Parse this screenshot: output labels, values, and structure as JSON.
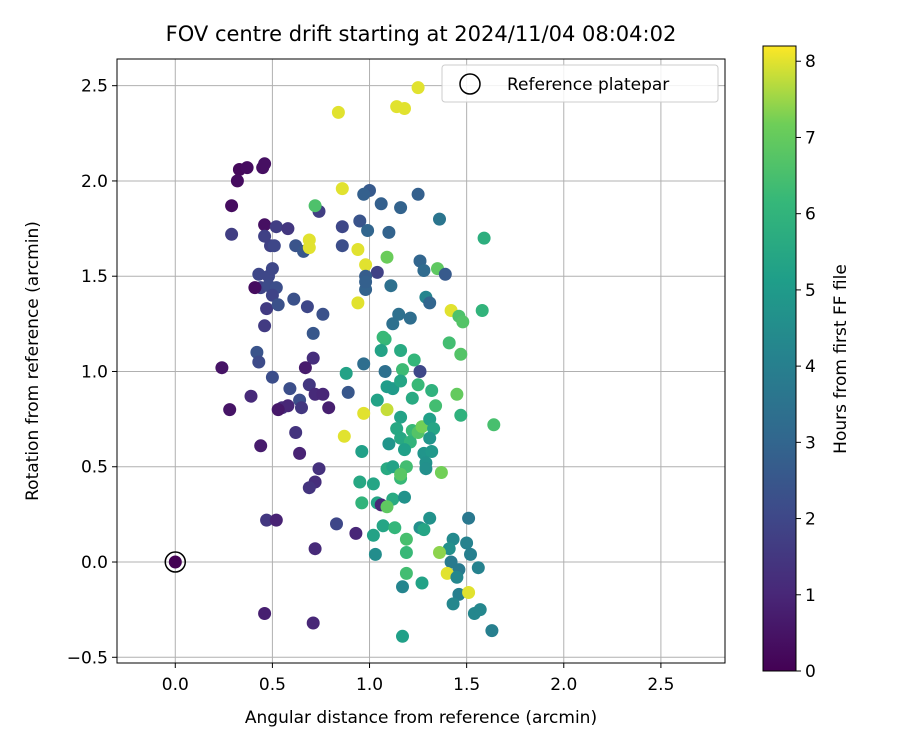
{
  "chart_data": {
    "type": "scatter",
    "title": "FOV centre drift starting at 2024/11/04 08:04:02",
    "xlabel": "Angular distance from reference (arcmin)",
    "ylabel": "Rotation from reference (arcmin)",
    "xlim": [
      -0.3,
      2.83
    ],
    "ylim": [
      -0.53,
      2.64
    ],
    "xticks": [
      0.0,
      0.5,
      1.0,
      1.5,
      2.0,
      2.5
    ],
    "yticks": [
      -0.5,
      0.0,
      0.5,
      1.0,
      1.5,
      2.0,
      2.5
    ],
    "xtick_labels": [
      "0.0",
      "0.5",
      "1.0",
      "1.5",
      "2.0",
      "2.5"
    ],
    "ytick_labels": [
      "−0.5",
      "0.0",
      "0.5",
      "1.0",
      "1.5",
      "2.0",
      "2.5"
    ],
    "grid": true,
    "legend": {
      "position": "top-right",
      "entries": [
        "Reference platepar"
      ]
    },
    "reference_point": {
      "x": 0.0,
      "y": 0.0,
      "label": "Reference platepar"
    },
    "colorbar": {
      "label": "Hours from first FF file",
      "range": [
        0,
        8.2
      ],
      "ticks": [
        0,
        1,
        2,
        3,
        4,
        5,
        6,
        7,
        8
      ],
      "tick_labels": [
        "0",
        "1",
        "2",
        "3",
        "4",
        "5",
        "6",
        "7",
        "8"
      ],
      "colormap": "viridis"
    },
    "points": [
      [
        0.0,
        0.0,
        0.0
      ],
      [
        0.33,
        2.06,
        0.2
      ],
      [
        0.37,
        2.07,
        0.3
      ],
      [
        0.45,
        2.07,
        0.4
      ],
      [
        0.46,
        2.09,
        0.4
      ],
      [
        0.32,
        2.0,
        0.3
      ],
      [
        0.29,
        1.87,
        0.3
      ],
      [
        0.46,
        1.77,
        0.4
      ],
      [
        0.29,
        1.72,
        1.7
      ],
      [
        0.52,
        1.76,
        1.7
      ],
      [
        0.58,
        1.75,
        1.5
      ],
      [
        0.46,
        1.71,
        1.8
      ],
      [
        0.49,
        1.66,
        1.8
      ],
      [
        0.51,
        1.66,
        2.0
      ],
      [
        0.62,
        1.66,
        2.4
      ],
      [
        0.66,
        1.63,
        2.5
      ],
      [
        0.43,
        1.51,
        2.0
      ],
      [
        0.48,
        1.5,
        2.0
      ],
      [
        0.5,
        1.54,
        2.0
      ],
      [
        0.44,
        1.44,
        1.9
      ],
      [
        0.48,
        1.45,
        2.1
      ],
      [
        0.52,
        1.44,
        2.2
      ],
      [
        0.5,
        1.4,
        1.9
      ],
      [
        0.41,
        1.44,
        0.3
      ],
      [
        0.47,
        1.33,
        1.6
      ],
      [
        0.53,
        1.35,
        2.3
      ],
      [
        0.61,
        1.38,
        2.3
      ],
      [
        0.68,
        1.34,
        2.0
      ],
      [
        0.76,
        1.3,
        2.3
      ],
      [
        0.46,
        1.24,
        1.6
      ],
      [
        0.71,
        1.2,
        2.5
      ],
      [
        0.42,
        1.1,
        2.4
      ],
      [
        0.43,
        1.05,
        2.1
      ],
      [
        0.24,
        1.02,
        0.5
      ],
      [
        0.5,
        0.97,
        2.2
      ],
      [
        0.71,
        1.07,
        1.2
      ],
      [
        0.67,
        1.02,
        0.7
      ],
      [
        0.69,
        0.93,
        1.5
      ],
      [
        0.72,
        0.88,
        1.1
      ],
      [
        0.76,
        0.88,
        1.0
      ],
      [
        0.59,
        0.91,
        2.2
      ],
      [
        0.64,
        0.85,
        2.2
      ],
      [
        0.65,
        0.81,
        1.5
      ],
      [
        0.55,
        0.81,
        1.2
      ],
      [
        0.58,
        0.82,
        1.0
      ],
      [
        0.53,
        0.8,
        0.6
      ],
      [
        0.79,
        0.81,
        0.8
      ],
      [
        0.39,
        0.87,
        1.1
      ],
      [
        0.28,
        0.8,
        0.5
      ],
      [
        0.44,
        0.61,
        0.7
      ],
      [
        0.62,
        0.68,
        1.4
      ],
      [
        0.64,
        0.57,
        0.9
      ],
      [
        0.74,
        0.49,
        1.3
      ],
      [
        0.72,
        0.42,
        1.2
      ],
      [
        0.69,
        0.39,
        1.4
      ],
      [
        0.47,
        0.22,
        1.5
      ],
      [
        0.52,
        0.22,
        0.9
      ],
      [
        0.83,
        0.2,
        2.0
      ],
      [
        0.72,
        0.07,
        1.1
      ],
      [
        0.46,
        -0.27,
        0.8
      ],
      [
        0.71,
        -0.32,
        1.0
      ],
      [
        0.74,
        1.84,
        1.7
      ],
      [
        0.72,
        1.87,
        6.6
      ],
      [
        0.86,
        1.96,
        8.0
      ],
      [
        0.84,
        2.36,
        8.0
      ],
      [
        1.14,
        2.39,
        8.0
      ],
      [
        1.18,
        2.38,
        8.0
      ],
      [
        1.25,
        2.49,
        8.0
      ],
      [
        1.0,
        1.95,
        2.6
      ],
      [
        0.97,
        1.93,
        2.8
      ],
      [
        1.06,
        1.88,
        2.8
      ],
      [
        1.16,
        1.86,
        2.9
      ],
      [
        1.25,
        1.93,
        2.8
      ],
      [
        0.95,
        1.79,
        2.4
      ],
      [
        0.99,
        1.74,
        3.0
      ],
      [
        0.86,
        1.76,
        2.0
      ],
      [
        1.1,
        1.73,
        2.9
      ],
      [
        0.86,
        1.66,
        2.2
      ],
      [
        1.36,
        1.8,
        3.6
      ],
      [
        1.59,
        1.7,
        5.8
      ],
      [
        0.94,
        1.64,
        8.0
      ],
      [
        0.69,
        1.69,
        8.0
      ],
      [
        0.69,
        1.65,
        8.0
      ],
      [
        0.98,
        1.56,
        8.0
      ],
      [
        1.04,
        1.52,
        1.8
      ],
      [
        0.98,
        1.5,
        2.7
      ],
      [
        0.98,
        1.43,
        2.9
      ],
      [
        0.98,
        1.47,
        2.8
      ],
      [
        1.09,
        1.6,
        7.1
      ],
      [
        1.26,
        1.58,
        3.0
      ],
      [
        1.28,
        1.53,
        3.2
      ],
      [
        1.35,
        1.54,
        6.9
      ],
      [
        1.39,
        1.51,
        2.6
      ],
      [
        1.11,
        1.45,
        3.4
      ],
      [
        1.29,
        1.39,
        4.2
      ],
      [
        1.31,
        1.36,
        3.0
      ],
      [
        0.94,
        1.36,
        8.0
      ],
      [
        1.15,
        1.3,
        3.4
      ],
      [
        1.12,
        1.25,
        3.4
      ],
      [
        1.21,
        1.28,
        3.3
      ],
      [
        1.42,
        1.32,
        8.0
      ],
      [
        1.46,
        1.29,
        6.6
      ],
      [
        1.48,
        1.26,
        6.7
      ],
      [
        1.58,
        1.32,
        6.0
      ],
      [
        1.08,
        1.17,
        6.1
      ],
      [
        1.07,
        1.18,
        6.2
      ],
      [
        1.06,
        1.11,
        5.3
      ],
      [
        0.97,
        1.04,
        3.3
      ],
      [
        0.88,
        0.99,
        5.3
      ],
      [
        0.89,
        0.89,
        2.5
      ],
      [
        1.16,
        1.11,
        5.6
      ],
      [
        1.23,
        1.06,
        6.1
      ],
      [
        1.26,
        1.0,
        2.0
      ],
      [
        1.08,
        1.0,
        3.4
      ],
      [
        1.17,
        1.01,
        6.3
      ],
      [
        1.09,
        0.92,
        5.1
      ],
      [
        1.12,
        0.91,
        5.0
      ],
      [
        1.16,
        0.95,
        5.4
      ],
      [
        1.25,
        0.93,
        6.2
      ],
      [
        1.32,
        0.9,
        5.9
      ],
      [
        1.34,
        0.82,
        6.4
      ],
      [
        1.41,
        1.15,
        6.4
      ],
      [
        1.47,
        1.09,
        6.7
      ],
      [
        1.45,
        0.88,
        7.0
      ],
      [
        1.47,
        0.77,
        5.9
      ],
      [
        1.64,
        0.72,
        6.5
      ],
      [
        1.22,
        0.86,
        5.6
      ],
      [
        1.04,
        0.85,
        5.3
      ],
      [
        0.97,
        0.78,
        8.0
      ],
      [
        1.09,
        0.8,
        7.8
      ],
      [
        1.16,
        0.76,
        5.3
      ],
      [
        1.14,
        0.7,
        5.5
      ],
      [
        1.16,
        0.65,
        5.5
      ],
      [
        1.22,
        0.69,
        6.2
      ],
      [
        1.21,
        0.63,
        6.0
      ],
      [
        1.25,
        0.68,
        6.7
      ],
      [
        1.27,
        0.71,
        7.2
      ],
      [
        1.31,
        0.75,
        5.2
      ],
      [
        1.33,
        0.7,
        5.4
      ],
      [
        1.31,
        0.65,
        4.8
      ],
      [
        1.1,
        0.62,
        4.8
      ],
      [
        1.18,
        0.59,
        5.2
      ],
      [
        1.28,
        0.57,
        4.8
      ],
      [
        1.32,
        0.58,
        4.9
      ],
      [
        1.29,
        0.52,
        4.7
      ],
      [
        1.37,
        0.47,
        7.2
      ],
      [
        0.87,
        0.66,
        8.0
      ],
      [
        0.96,
        0.58,
        5.2
      ],
      [
        1.09,
        0.49,
        5.6
      ],
      [
        1.12,
        0.5,
        5.3
      ],
      [
        1.19,
        0.5,
        6.4
      ],
      [
        1.29,
        0.49,
        4.6
      ],
      [
        0.95,
        0.42,
        5.5
      ],
      [
        1.02,
        0.41,
        5.4
      ],
      [
        1.16,
        0.44,
        6.2
      ],
      [
        1.16,
        0.46,
        6.8
      ],
      [
        1.12,
        0.33,
        5.6
      ],
      [
        1.18,
        0.34,
        4.7
      ],
      [
        0.96,
        0.31,
        6.0
      ],
      [
        1.04,
        0.31,
        5.4
      ],
      [
        1.06,
        0.3,
        1.0
      ],
      [
        1.09,
        0.29,
        6.9
      ],
      [
        1.31,
        0.23,
        4.7
      ],
      [
        1.51,
        0.23,
        3.7
      ],
      [
        1.07,
        0.19,
        5.4
      ],
      [
        1.13,
        0.18,
        6.1
      ],
      [
        1.26,
        0.18,
        4.6
      ],
      [
        0.93,
        0.15,
        1.0
      ],
      [
        1.02,
        0.14,
        5.3
      ],
      [
        1.19,
        0.12,
        6.5
      ],
      [
        1.28,
        0.17,
        5.4
      ],
      [
        1.43,
        0.12,
        4.4
      ],
      [
        1.41,
        0.07,
        4.6
      ],
      [
        1.5,
        0.1,
        4.1
      ],
      [
        1.03,
        0.04,
        4.5
      ],
      [
        1.19,
        0.05,
        6.2
      ],
      [
        1.36,
        0.05,
        7.4
      ],
      [
        1.42,
        0.0,
        3.8
      ],
      [
        1.52,
        0.04,
        4.0
      ],
      [
        1.46,
        -0.04,
        3.8
      ],
      [
        1.56,
        -0.03,
        4.1
      ],
      [
        1.4,
        -0.06,
        8.0
      ],
      [
        1.45,
        -0.08,
        4.3
      ],
      [
        1.19,
        -0.06,
        6.4
      ],
      [
        1.27,
        -0.11,
        5.3
      ],
      [
        1.17,
        -0.13,
        4.2
      ],
      [
        1.46,
        -0.17,
        4.0
      ],
      [
        1.51,
        -0.16,
        8.0
      ],
      [
        1.43,
        -0.22,
        4.3
      ],
      [
        1.54,
        -0.27,
        4.3
      ],
      [
        1.57,
        -0.25,
        4.3
      ],
      [
        1.63,
        -0.36,
        4.0
      ],
      [
        1.17,
        -0.39,
        5.2
      ]
    ]
  }
}
